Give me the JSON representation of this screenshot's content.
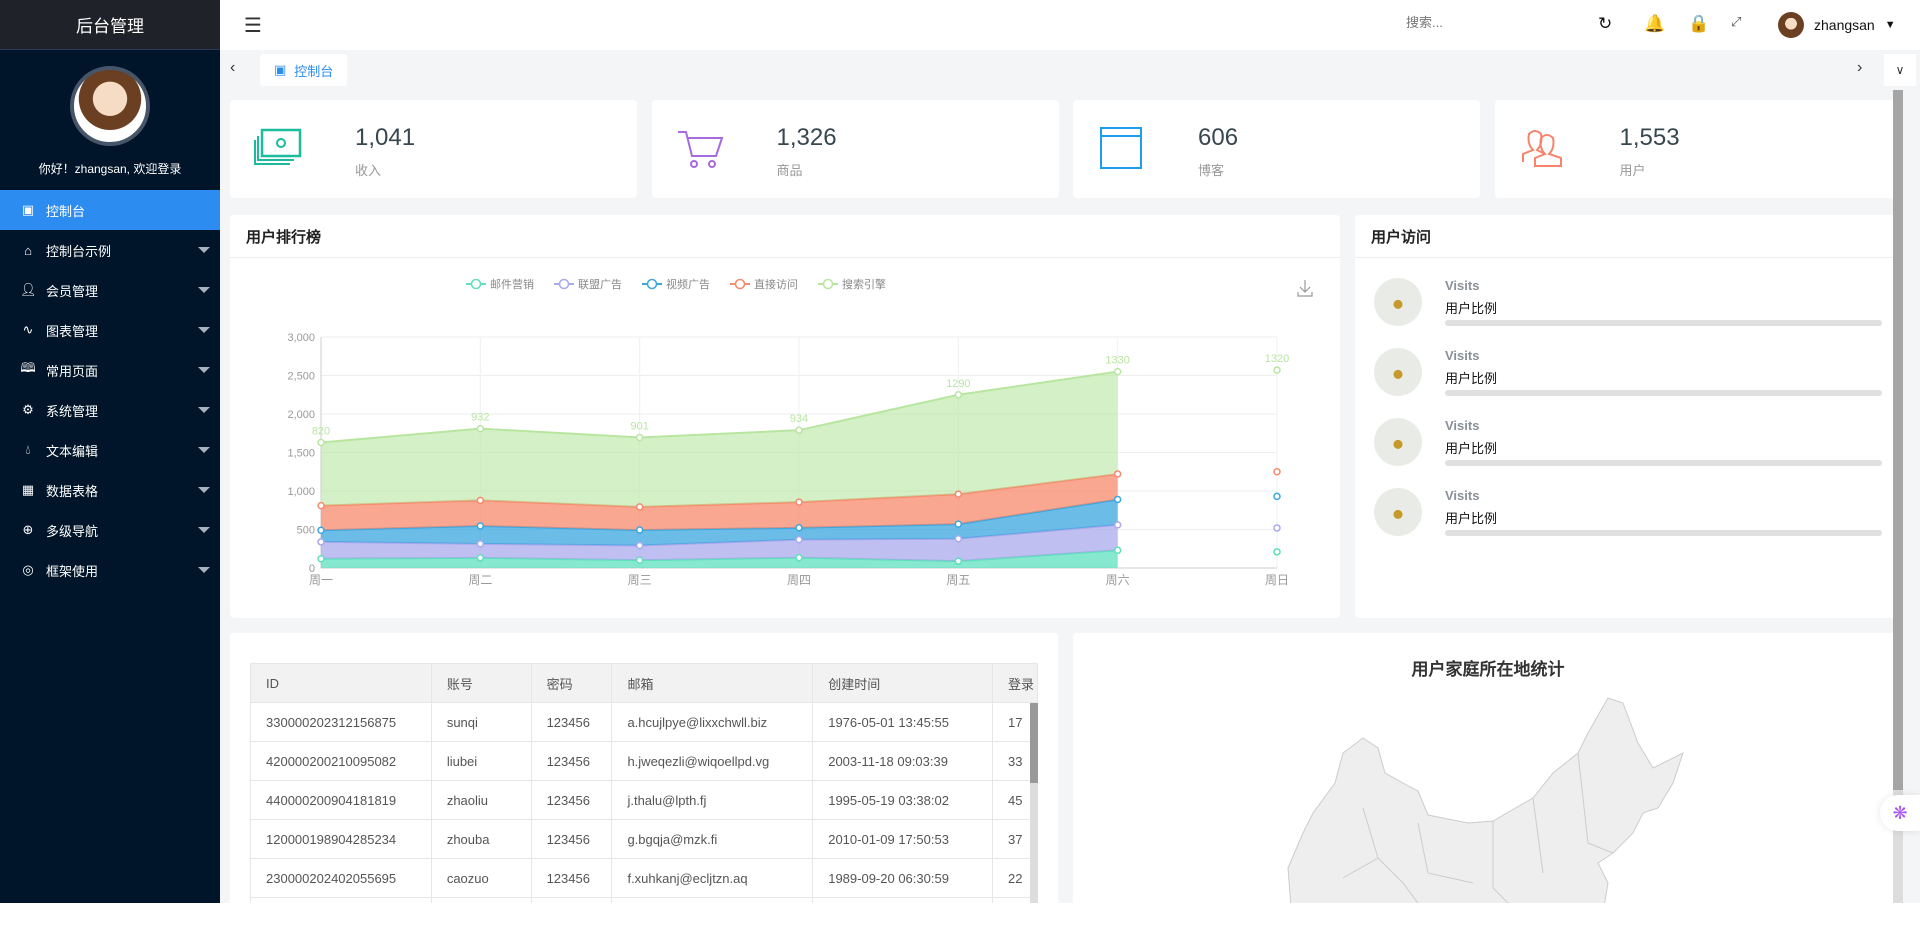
{
  "sidebar": {
    "title": "后台管理",
    "welcome": "你好！zhangsan, 欢迎登录",
    "items": [
      {
        "label": "控制台",
        "icon": "monitor-icon",
        "active": true
      },
      {
        "label": "控制台示例",
        "icon": "home-icon"
      },
      {
        "label": "会员管理",
        "icon": "user-icon"
      },
      {
        "label": "图表管理",
        "icon": "pulse-icon"
      },
      {
        "label": "常用页面",
        "icon": "book-icon"
      },
      {
        "label": "系统管理",
        "icon": "gear-icon"
      },
      {
        "label": "文本编辑",
        "icon": "drops-icon"
      },
      {
        "label": "数据表格",
        "icon": "grid-icon"
      },
      {
        "label": "多级导航",
        "icon": "plus-circle-icon"
      },
      {
        "label": "框架使用",
        "icon": "ok-icon"
      }
    ]
  },
  "header": {
    "search_placeholder": "搜索...",
    "username": "zhangsan"
  },
  "tabs": [
    {
      "label": "控制台"
    }
  ],
  "cards": [
    {
      "value": "1,041",
      "label": "收入",
      "color": "#1abc9c"
    },
    {
      "value": "1,326",
      "label": "商品",
      "color": "#a66bde"
    },
    {
      "value": "606",
      "label": "博客",
      "color": "#1e9ef0"
    },
    {
      "value": "1,553",
      "label": "用户",
      "color": "#f4846c"
    }
  ],
  "ranking": {
    "title": "用户排行榜"
  },
  "visits": {
    "title": "用户访问",
    "items": [
      {
        "title": "Visits",
        "subtitle": "用户比例",
        "progress": 0
      },
      {
        "title": "Visits",
        "subtitle": "用户比例",
        "progress": 0
      },
      {
        "title": "Visits",
        "subtitle": "用户比例",
        "progress": 0
      },
      {
        "title": "Visits",
        "subtitle": "用户比例",
        "progress": 0
      }
    ]
  },
  "table": {
    "columns": [
      "ID",
      "账号",
      "密码",
      "邮箱",
      "创建时间",
      "登录"
    ],
    "rows": [
      [
        "330000202312156875",
        "sunqi",
        "123456",
        "a.hcujlpye@lixxchwll.biz",
        "1976-05-01 13:45:55",
        "17"
      ],
      [
        "420000200210095082",
        "liubei",
        "123456",
        "h.jweqezli@wiqoellpd.vg",
        "2003-11-18 09:03:39",
        "33"
      ],
      [
        "440000200904181819",
        "zhaoliu",
        "123456",
        "j.thalu@lpth.fj",
        "1995-05-19 03:38:02",
        "45"
      ],
      [
        "120000198904285234",
        "zhouba",
        "123456",
        "g.bgqja@mzk.fi",
        "2010-01-09 17:50:53",
        "37"
      ],
      [
        "230000202402055695",
        "caozuo",
        "123456",
        "f.xuhkanj@ecljtzn.aq",
        "1989-09-20 06:30:59",
        "22"
      ]
    ]
  },
  "map": {
    "title": "用户家庭所在地统计"
  },
  "chart_data": {
    "type": "area",
    "stacked": true,
    "categories": [
      "周一",
      "周二",
      "周三",
      "周四",
      "周五",
      "周六",
      "周日"
    ],
    "ylim": [
      0,
      3000
    ],
    "yticks": [
      "0",
      "500",
      "1,000",
      "1,500",
      "2,000",
      "2,500",
      "3,000"
    ],
    "grid": true,
    "legend": "top-center",
    "series": [
      {
        "name": "邮件营销",
        "values": [
          120,
          132,
          101,
          134,
          90,
          230,
          210
        ],
        "color": "#5ee0bd"
      },
      {
        "name": "联盟广告",
        "values": [
          220,
          182,
          191,
          234,
          290,
          330,
          310
        ],
        "color": "#a9a9ec"
      },
      {
        "name": "视频广告",
        "values": [
          150,
          232,
          201,
          154,
          190,
          330,
          410
        ],
        "color": "#3aa7e0"
      },
      {
        "name": "直接访问",
        "values": [
          320,
          332,
          301,
          334,
          390,
          330,
          320
        ],
        "color": "#f8896c"
      },
      {
        "name": "搜索引擎",
        "values": [
          820,
          932,
          901,
          934,
          1290,
          1330,
          1320
        ],
        "color": "#b8e6a0",
        "labels": true
      }
    ]
  }
}
